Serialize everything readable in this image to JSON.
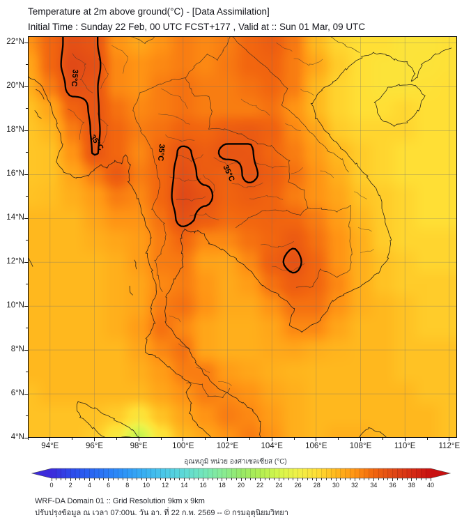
{
  "header": {
    "title": "Temperature at 2m above ground(°C) - [Data Assimilation]",
    "subtitle": "Initial Time : Sunday 22 Feb, 00 UTC FCST+177 , Valid at :: Sun 01 Mar, 09 UTC"
  },
  "map": {
    "extent": {
      "lon_min": 93.0,
      "lon_max": 112.35,
      "lat_min": 4.0,
      "lat_max": 22.3
    },
    "x_ticks": [
      {
        "lon": 94,
        "label": "94°E"
      },
      {
        "lon": 96,
        "label": "96°E"
      },
      {
        "lon": 98,
        "label": "98°E"
      },
      {
        "lon": 100,
        "label": "100°E"
      },
      {
        "lon": 102,
        "label": "102°E"
      },
      {
        "lon": 104,
        "label": "104°E"
      },
      {
        "lon": 106,
        "label": "106°E"
      },
      {
        "lon": 108,
        "label": "108°E"
      },
      {
        "lon": 110,
        "label": "110°E"
      },
      {
        "lon": 112,
        "label": "112°E"
      }
    ],
    "y_ticks": [
      {
        "lat": 22,
        "label": "22°N"
      },
      {
        "lat": 20,
        "label": "20°N"
      },
      {
        "lat": 18,
        "label": "18°N"
      },
      {
        "lat": 16,
        "label": "16°N"
      },
      {
        "lat": 14,
        "label": "14°N"
      },
      {
        "lat": 12,
        "label": "12°N"
      },
      {
        "lat": 10,
        "label": "10°N"
      },
      {
        "lat": 8,
        "label": "8°N"
      },
      {
        "lat": 6,
        "label": "6°N"
      },
      {
        "lat": 4,
        "label": "4°N"
      }
    ],
    "contour": {
      "level": 35,
      "label": "35°C"
    }
  },
  "chart_data": {
    "type": "heatmap",
    "variable": "Temperature at 2m (°C)",
    "grid": {
      "lon_start": 93,
      "lon_step": 1,
      "lat_start": 22,
      "lat_step": -1,
      "values": [
        [
          32,
          34,
          35.6,
          35.2,
          32,
          31,
          32,
          33,
          32.5,
          33,
          34,
          34.6,
          33.2,
          30,
          28.5,
          28,
          28,
          27.5,
          27.5,
          27.8
        ],
        [
          31,
          34,
          36,
          35.6,
          32.5,
          32,
          32.5,
          33,
          32.5,
          33.2,
          34,
          34.2,
          33,
          31,
          29,
          28,
          27.6,
          27.5,
          27.6,
          27.8
        ],
        [
          30.5,
          33,
          35.6,
          35.2,
          32.5,
          32,
          33,
          33.5,
          33,
          33,
          33.5,
          34,
          33,
          30,
          28.6,
          28,
          27.6,
          27.6,
          27.8,
          28
        ],
        [
          29.5,
          31,
          34.2,
          35.2,
          33.5,
          32.5,
          33,
          33.5,
          33,
          33,
          33,
          33.5,
          32,
          30,
          28.6,
          28,
          28,
          28.4,
          28,
          28
        ],
        [
          29.3,
          30,
          33,
          35.2,
          34,
          33,
          33.5,
          34.2,
          34,
          34.6,
          34.8,
          34.3,
          32.5,
          31,
          29,
          28.5,
          28.5,
          28.5,
          28,
          28
        ],
        [
          29.3,
          29.5,
          32,
          35.1,
          34,
          32.5,
          34,
          35.2,
          34.6,
          35.2,
          35.1,
          34,
          33,
          31.5,
          30,
          29,
          28.5,
          28,
          28,
          28
        ],
        [
          29.3,
          29.5,
          31,
          33,
          34.8,
          33,
          34,
          35.6,
          34.7,
          34.4,
          35.2,
          34.6,
          33.5,
          32,
          30.5,
          29,
          28.5,
          28,
          28,
          28
        ],
        [
          29.5,
          29.7,
          30.5,
          31.5,
          33,
          32.5,
          34,
          36,
          35.3,
          34.2,
          34.6,
          34.2,
          33,
          32,
          31,
          29.5,
          29,
          28.5,
          28,
          28
        ],
        [
          30,
          30,
          30,
          31,
          32,
          32,
          33.5,
          35.5,
          34.6,
          33.8,
          34,
          34.2,
          34,
          33,
          31.5,
          30,
          29,
          28.5,
          28,
          28
        ],
        [
          30,
          30,
          30,
          30.5,
          31,
          31.5,
          33,
          34,
          32.5,
          32.5,
          33.5,
          34,
          34.8,
          33.5,
          32,
          30.5,
          29,
          28.5,
          28.5,
          28.5
        ],
        [
          30,
          30,
          30,
          30,
          30.5,
          31.5,
          33,
          33.2,
          31.2,
          31,
          32.5,
          34.5,
          35.4,
          34,
          32,
          30.5,
          29.5,
          29,
          28.5,
          28.5
        ],
        [
          30,
          30,
          30,
          30,
          30.5,
          31,
          32.5,
          33,
          31.8,
          30.8,
          31.5,
          33.5,
          34.6,
          34,
          32.5,
          30.5,
          29.5,
          29,
          29,
          29
        ],
        [
          30,
          30,
          30,
          30,
          30.5,
          31,
          33,
          33.5,
          32,
          30.8,
          30.8,
          32,
          33.5,
          33.5,
          32,
          30.5,
          30,
          29.5,
          29,
          29
        ],
        [
          30,
          30,
          30,
          30,
          30.5,
          31.5,
          33.5,
          32.5,
          31,
          30.5,
          30.5,
          31,
          32.5,
          32.5,
          31,
          30,
          30,
          29.5,
          29,
          29
        ],
        [
          30,
          30,
          30,
          30,
          30,
          31,
          32.5,
          33.5,
          31,
          30.5,
          30.5,
          30.8,
          31,
          30.5,
          30.2,
          30,
          30,
          29.5,
          29.5,
          29.5
        ],
        [
          30,
          30,
          30,
          30,
          30,
          30.5,
          31.5,
          33,
          33,
          31.5,
          31,
          30.5,
          30.2,
          30,
          30,
          30,
          30,
          29.5,
          29.5,
          29.5
        ],
        [
          29.5,
          30,
          30,
          30,
          30,
          30,
          31,
          32,
          33,
          32.5,
          32,
          31,
          30.5,
          30,
          30,
          30,
          30,
          30,
          29.5,
          29.5
        ],
        [
          29.5,
          29.5,
          29.5,
          29.5,
          29,
          27.5,
          29.5,
          31,
          32,
          33,
          32.5,
          31.5,
          30.5,
          30,
          30,
          30,
          30,
          30,
          30,
          29.5
        ],
        [
          29.5,
          29.5,
          29.5,
          29,
          27,
          23,
          27.5,
          30,
          31,
          32,
          33,
          32,
          30.5,
          30,
          30.5,
          30.5,
          30,
          30,
          30,
          29.5
        ]
      ]
    }
  },
  "colorbar": {
    "label": "อุณหภูมิ หน่วย องศาเซลเซียส (°C)",
    "min": 0,
    "max": 40,
    "cell_step": 0.5,
    "ticks": [
      "0",
      "2",
      "4",
      "6",
      "8",
      "10",
      "12",
      "14",
      "16",
      "18",
      "20",
      "22",
      "24",
      "26",
      "28",
      "30",
      "32",
      "34",
      "36",
      "38",
      "40"
    ],
    "stops": [
      {
        "t": 0,
        "c": "#3d2bdb"
      },
      {
        "t": 2,
        "c": "#2e49ea"
      },
      {
        "t": 4,
        "c": "#2a63f2"
      },
      {
        "t": 6,
        "c": "#2b7ef7"
      },
      {
        "t": 8,
        "c": "#2f99f7"
      },
      {
        "t": 10,
        "c": "#3ab3f2"
      },
      {
        "t": 12,
        "c": "#4cc9e8"
      },
      {
        "t": 14,
        "c": "#5fdad6"
      },
      {
        "t": 16,
        "c": "#73e6bb"
      },
      {
        "t": 18,
        "c": "#88ec96"
      },
      {
        "t": 20,
        "c": "#97e968"
      },
      {
        "t": 22,
        "c": "#b2ef52"
      },
      {
        "t": 24,
        "c": "#d6f64c"
      },
      {
        "t": 26,
        "c": "#f1f148"
      },
      {
        "t": 28,
        "c": "#ffdf35"
      },
      {
        "t": 30,
        "c": "#ffb81e"
      },
      {
        "t": 32,
        "c": "#ff9414"
      },
      {
        "t": 34,
        "c": "#f2660f"
      },
      {
        "t": 36,
        "c": "#e14a16"
      },
      {
        "t": 38,
        "c": "#d62c14"
      },
      {
        "t": 40,
        "c": "#c81010"
      }
    ]
  },
  "footer": {
    "line1": "WRF-DA Domain 01 :: Grid Resolution 9km x 9km",
    "line2": "ปรับปรุงข้อมูล ณ เวลา 07:00น. วัน อา. ที่ 22 ก.พ. 2569 -- © กรมอุตุนิยมวิทยา"
  }
}
